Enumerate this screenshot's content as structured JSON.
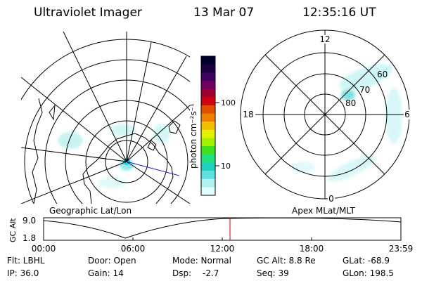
{
  "header": {
    "instrument": "Ultraviolet Imager",
    "date": "13 Mar 07",
    "time": "12:35:16 UT"
  },
  "colorbar": {
    "unit_label": "photon cm⁻²s⁻¹",
    "ticks": [
      "100",
      "10"
    ],
    "colors": [
      "#000030",
      "#1a0040",
      "#400060",
      "#700060",
      "#a00030",
      "#d00010",
      "#e05000",
      "#f08000",
      "#f0c000",
      "#e0f000",
      "#a0f000",
      "#40e020",
      "#20e080",
      "#20d0c0",
      "#60e0e0",
      "#b0f0f0",
      "#e0ffff"
    ]
  },
  "geographic_map": {
    "label": "Geographic Lat/Lon"
  },
  "apex_map": {
    "label": "Apex MLat/MLT",
    "mlt_labels": {
      "top": "12",
      "right": "6",
      "bottom": "0",
      "left": "18"
    },
    "lat_labels": [
      "60",
      "70",
      "80"
    ]
  },
  "altitude_plot": {
    "y_label": "GC Alt",
    "y_ticks": [
      "9.0",
      "1.8"
    ],
    "x_ticks": [
      "00:00",
      "06:00",
      "12:00",
      "18:00",
      "23:59"
    ],
    "marker_color": "#cc0000"
  },
  "info": {
    "row1": {
      "filter": "Flt: LBHL",
      "door": "Door: Open",
      "mode": "Mode: Normal",
      "gc_alt": "GC Alt: 8.8 Re",
      "glat": "GLat: -68.9"
    },
    "row2": {
      "ip": "IP: 36.0",
      "gain": "Gain: 14",
      "dsp_label": "Dsp:",
      "dsp_value": "-2.7",
      "seq": "Seq: 39",
      "glon": "GLon: 198.5"
    }
  }
}
